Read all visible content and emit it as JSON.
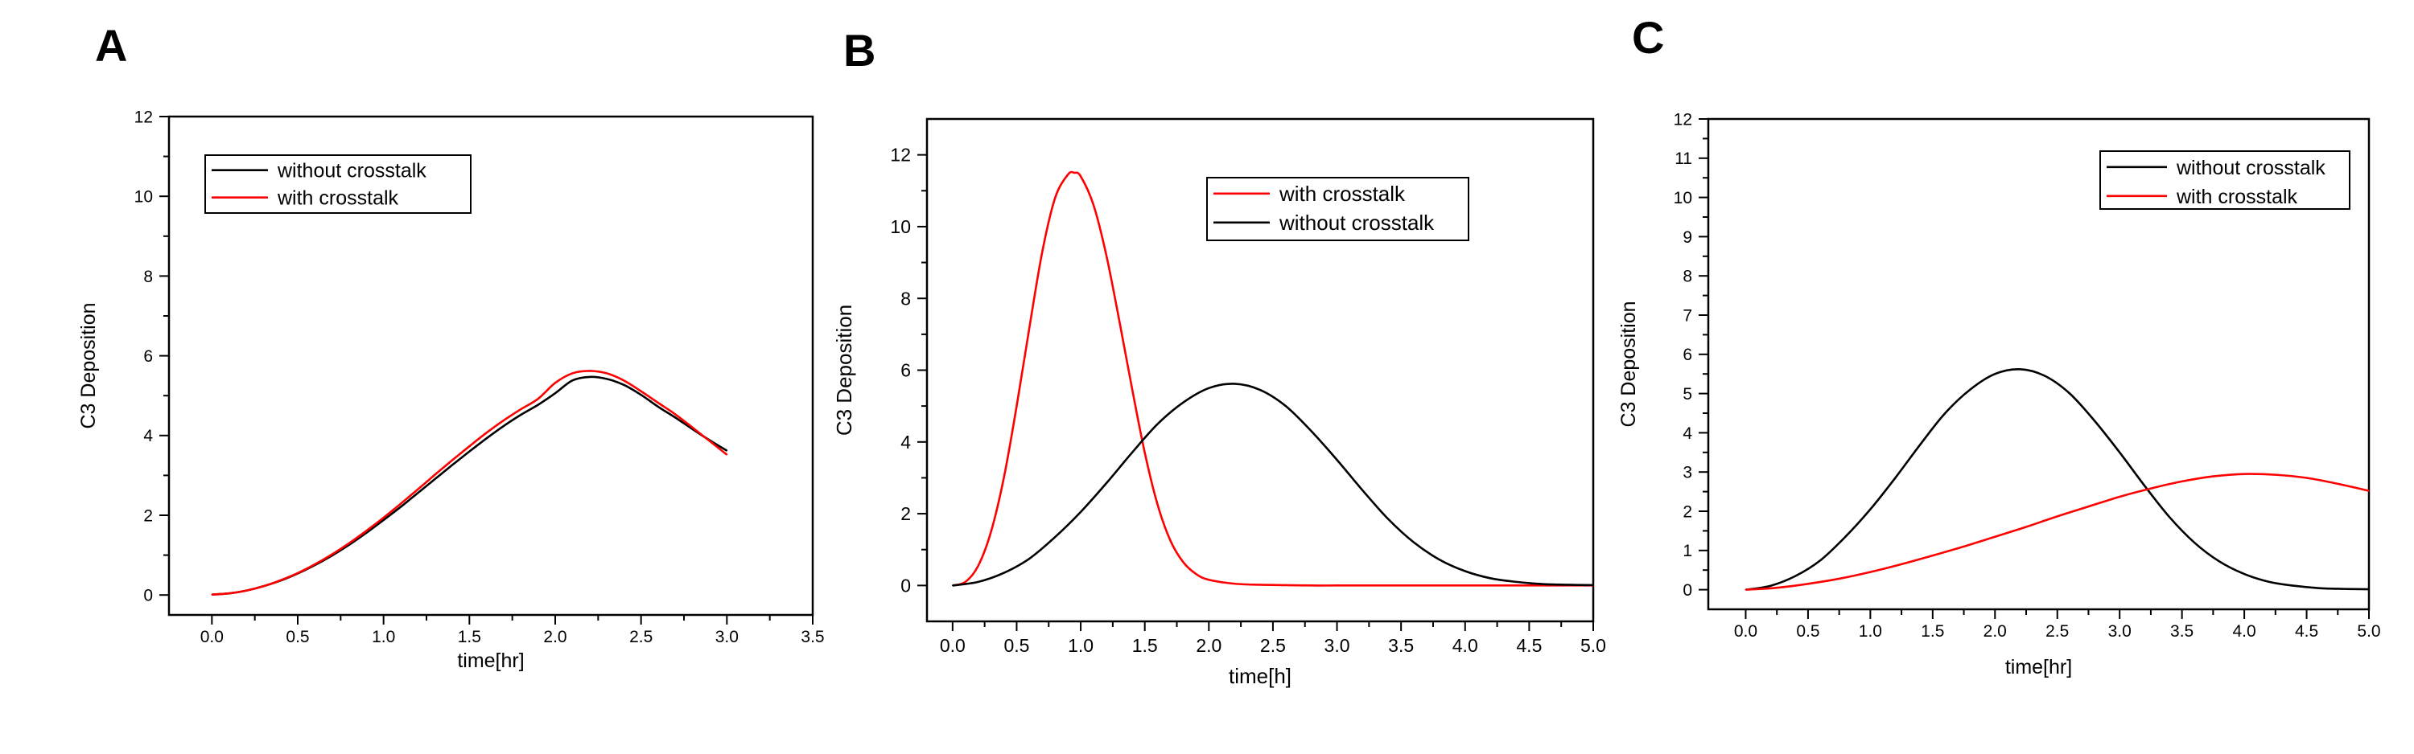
{
  "panel_letters": [
    "A",
    "B",
    "C"
  ],
  "colors": {
    "black_series": "#000000",
    "red_series": "#ff0000",
    "axis": "#000000"
  },
  "chart_data": [
    {
      "type": "line",
      "panel": "A",
      "xlabel": "time[hr]",
      "ylabel": "C3 Deposition",
      "xlim": [
        -0.25,
        3.5
      ],
      "ylim": [
        -0.5,
        12
      ],
      "xticks": [
        0,
        0.5,
        1,
        1.5,
        2,
        2.5,
        3,
        3.5
      ],
      "xtick_labels": [
        "0.0",
        "0.5",
        "1.0",
        "1.5",
        "2.0",
        "2.5",
        "3.0",
        "3.5"
      ],
      "yticks": [
        0,
        2,
        4,
        6,
        8,
        10,
        12
      ],
      "ytick_labels": [
        "0",
        "2",
        "4",
        "6",
        "8",
        "10",
        "12"
      ],
      "legend_placement": "top-left",
      "series": [
        {
          "name": "without crosstalk",
          "color": "#000000",
          "x": [
            0,
            0.1,
            0.2,
            0.3,
            0.4,
            0.5,
            0.6,
            0.7,
            0.8,
            0.9,
            1.0,
            1.1,
            1.2,
            1.3,
            1.4,
            1.5,
            1.6,
            1.7,
            1.8,
            1.9,
            2.0,
            2.1,
            2.2,
            2.3,
            2.4,
            2.5,
            2.6,
            2.7,
            2.8,
            2.9,
            3.0
          ],
          "y": [
            0.01,
            0.04,
            0.11,
            0.22,
            0.36,
            0.54,
            0.75,
            0.99,
            1.26,
            1.56,
            1.88,
            2.21,
            2.56,
            2.91,
            3.26,
            3.6,
            3.93,
            4.24,
            4.52,
            4.77,
            5.06,
            5.38,
            5.47,
            5.42,
            5.27,
            5.02,
            4.72,
            4.45,
            4.16,
            3.88,
            3.62
          ]
        },
        {
          "name": "with crosstalk",
          "color": "#ff0000",
          "x": [
            0,
            0.1,
            0.2,
            0.3,
            0.4,
            0.5,
            0.6,
            0.7,
            0.8,
            0.9,
            1.0,
            1.1,
            1.2,
            1.3,
            1.4,
            1.5,
            1.6,
            1.7,
            1.8,
            1.9,
            2.0,
            2.1,
            2.2,
            2.3,
            2.4,
            2.5,
            2.6,
            2.7,
            2.8,
            2.9,
            3.0
          ],
          "y": [
            0.01,
            0.04,
            0.11,
            0.22,
            0.37,
            0.55,
            0.77,
            1.02,
            1.3,
            1.61,
            1.94,
            2.29,
            2.65,
            3.02,
            3.38,
            3.73,
            4.07,
            4.38,
            4.66,
            4.92,
            5.32,
            5.56,
            5.62,
            5.56,
            5.38,
            5.11,
            4.82,
            4.53,
            4.2,
            3.86,
            3.52
          ]
        }
      ]
    },
    {
      "type": "line",
      "panel": "B",
      "xlabel": "time[h]",
      "ylabel": "C3 Deposition",
      "xlim": [
        -0.2,
        5.0
      ],
      "ylim": [
        -1,
        13
      ],
      "xticks": [
        0,
        0.5,
        1,
        1.5,
        2,
        2.5,
        3,
        3.5,
        4,
        4.5,
        5
      ],
      "xtick_labels": [
        "0.0",
        "0.5",
        "1.0",
        "1.5",
        "2.0",
        "2.5",
        "3.0",
        "3.5",
        "4.0",
        "4.5",
        "5.0"
      ],
      "yticks": [
        0,
        2,
        4,
        6,
        8,
        10,
        12
      ],
      "ytick_labels": [
        "0",
        "2",
        "4",
        "6",
        "8",
        "10",
        "12"
      ],
      "legend_placement": "top-right",
      "series": [
        {
          "name": "with crosstalk",
          "color": "#ff0000",
          "x": [
            0,
            0.1,
            0.2,
            0.3,
            0.4,
            0.5,
            0.6,
            0.7,
            0.8,
            0.9,
            0.95,
            1.0,
            1.1,
            1.2,
            1.3,
            1.4,
            1.5,
            1.6,
            1.7,
            1.8,
            1.9,
            2.0,
            2.2,
            2.4,
            2.6,
            2.8,
            3.0,
            3.5,
            4.0,
            4.5,
            5.0
          ],
          "y": [
            0.0,
            0.1,
            0.55,
            1.5,
            3.0,
            5.0,
            7.2,
            9.3,
            10.8,
            11.45,
            11.5,
            11.4,
            10.6,
            9.2,
            7.4,
            5.5,
            3.7,
            2.25,
            1.25,
            0.65,
            0.32,
            0.16,
            0.05,
            0.02,
            0.01,
            0.0,
            0.0,
            0.0,
            0.0,
            0.0,
            0.0
          ]
        },
        {
          "name": "without crosstalk",
          "color": "#000000",
          "x": [
            0,
            0.2,
            0.4,
            0.6,
            0.8,
            1.0,
            1.2,
            1.4,
            1.6,
            1.8,
            2.0,
            2.2,
            2.4,
            2.6,
            2.8,
            3.0,
            3.2,
            3.4,
            3.6,
            3.8,
            4.0,
            4.2,
            4.4,
            4.6,
            4.8,
            5.0
          ],
          "y": [
            0.0,
            0.1,
            0.35,
            0.75,
            1.35,
            2.05,
            2.85,
            3.7,
            4.5,
            5.1,
            5.5,
            5.62,
            5.45,
            5.0,
            4.3,
            3.5,
            2.65,
            1.85,
            1.2,
            0.72,
            0.4,
            0.2,
            0.1,
            0.04,
            0.02,
            0.01
          ]
        }
      ]
    },
    {
      "type": "line",
      "panel": "C",
      "xlabel": "time[hr]",
      "ylabel": "C3 Deposition",
      "xlim": [
        -0.3,
        5.0
      ],
      "ylim": [
        -0.5,
        12
      ],
      "xticks": [
        0,
        0.5,
        1,
        1.5,
        2,
        2.5,
        3,
        3.5,
        4,
        4.5,
        5
      ],
      "xtick_labels": [
        "0.0",
        "0.5",
        "1.0",
        "1.5",
        "2.0",
        "2.5",
        "3.0",
        "3.5",
        "4.0",
        "4.5",
        "5.0"
      ],
      "yticks": [
        0,
        1,
        2,
        3,
        4,
        5,
        6,
        7,
        8,
        9,
        10,
        11,
        12
      ],
      "ytick_labels": [
        "0",
        "1",
        "2",
        "3",
        "4",
        "5",
        "6",
        "7",
        "8",
        "9",
        "10",
        "11",
        "12"
      ],
      "legend_placement": "top-right",
      "series": [
        {
          "name": "without crosstalk",
          "color": "#000000",
          "x": [
            0,
            0.2,
            0.4,
            0.6,
            0.8,
            1.0,
            1.2,
            1.4,
            1.6,
            1.8,
            2.0,
            2.2,
            2.4,
            2.6,
            2.8,
            3.0,
            3.2,
            3.4,
            3.6,
            3.8,
            4.0,
            4.2,
            4.4,
            4.6,
            4.8,
            5.0
          ],
          "y": [
            0.0,
            0.1,
            0.35,
            0.75,
            1.35,
            2.05,
            2.85,
            3.7,
            4.5,
            5.1,
            5.5,
            5.62,
            5.45,
            5.0,
            4.3,
            3.5,
            2.65,
            1.85,
            1.2,
            0.72,
            0.4,
            0.2,
            0.1,
            0.04,
            0.02,
            0.01
          ]
        },
        {
          "name": "with crosstalk",
          "color": "#ff0000",
          "x": [
            0,
            0.25,
            0.5,
            0.75,
            1.0,
            1.25,
            1.5,
            1.75,
            2.0,
            2.25,
            2.5,
            2.75,
            3.0,
            3.25,
            3.5,
            3.75,
            4.0,
            4.25,
            4.5,
            4.75,
            5.0
          ],
          "y": [
            0.0,
            0.05,
            0.15,
            0.28,
            0.45,
            0.65,
            0.87,
            1.1,
            1.35,
            1.6,
            1.87,
            2.12,
            2.37,
            2.58,
            2.76,
            2.89,
            2.95,
            2.93,
            2.85,
            2.7,
            2.52
          ]
        }
      ]
    }
  ]
}
